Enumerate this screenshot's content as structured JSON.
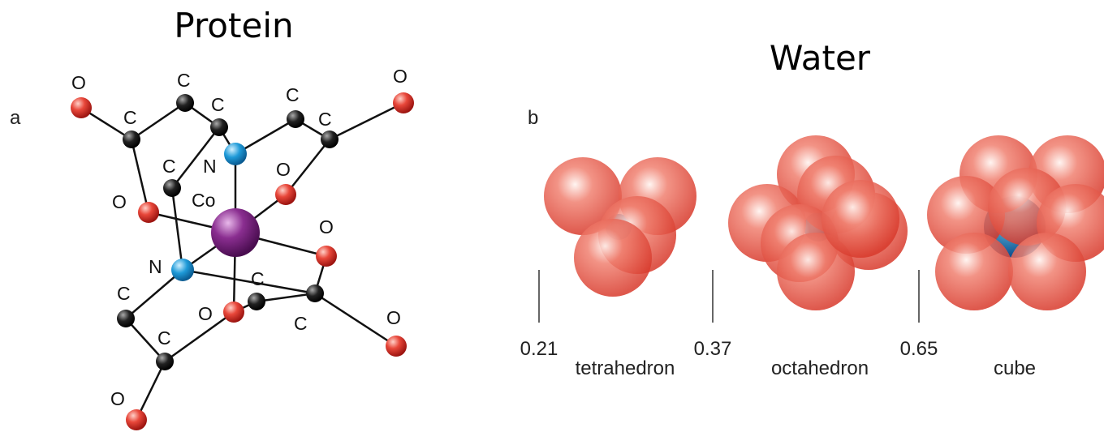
{
  "panel_a": {
    "title": "Protein",
    "label": "a",
    "atoms": [
      "O",
      "C",
      "C",
      "C",
      "C",
      "O",
      "C",
      "N",
      "O",
      "C",
      "Co",
      "O",
      "O",
      "N",
      "C",
      "C",
      "O",
      "C",
      "O",
      "C",
      "O"
    ]
  },
  "panel_b": {
    "title": "Water",
    "label": "b",
    "ratios": [
      {
        "value": 0.21,
        "shape": "tetrahedron"
      },
      {
        "value": 0.37,
        "shape": "octahedron"
      },
      {
        "value": 0.65,
        "shape": "cube"
      }
    ]
  }
}
